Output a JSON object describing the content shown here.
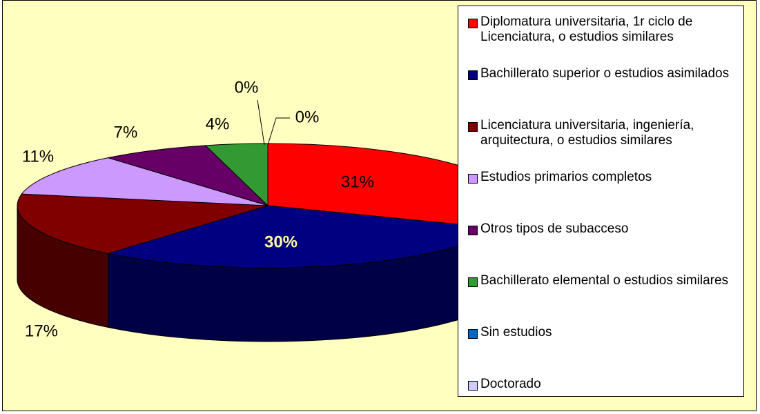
{
  "chart_data": {
    "type": "pie",
    "categories": [
      "Diplomatura universitaria, 1r ciclo de Licenciatura, o estudios similares",
      "Bachillerato superior o estudios asimilados",
      "Licenciatura universitaria, ingeniería, arquitectura, o estudios similares",
      "Estudios primarios completos",
      "Otros tipos de subacceso",
      "Bachillerato elemental o estudios similares",
      "Sin estudios",
      "Doctorado"
    ],
    "values": [
      31,
      30,
      17,
      11,
      7,
      4,
      0,
      0
    ],
    "value_labels": [
      "31%",
      "30%",
      "17%",
      "11%",
      "7%",
      "4%",
      "0%",
      "0%"
    ],
    "colors": [
      "#ff0000",
      "#000080",
      "#800000",
      "#cc99ff",
      "#660066",
      "#339933",
      "#0066cc",
      "#ccccff"
    ],
    "legend": "right"
  }
}
